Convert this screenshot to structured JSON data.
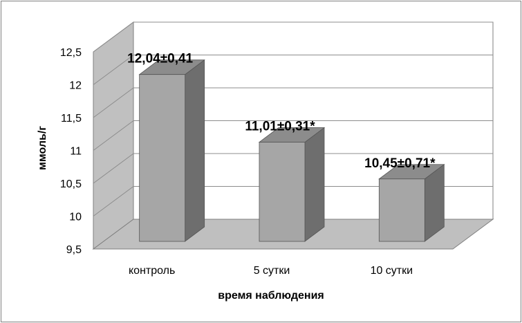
{
  "chart_data": {
    "type": "bar",
    "categories": [
      "контроль",
      "5 сутки",
      "10 сутки"
    ],
    "values": [
      12.04,
      11.01,
      10.45
    ],
    "data_labels": [
      "12,04±0,41",
      "11,01±0,31*",
      "10,45±0,71*"
    ],
    "xlabel": "время наблюдения",
    "ylabel": "ммоль/г",
    "ylim": [
      9.5,
      12.5
    ],
    "yticks": [
      "9,5",
      "10",
      "10,5",
      "11",
      "11,5",
      "12",
      "12,5"
    ],
    "grid": true,
    "style": "3d",
    "colors": {
      "bar_front": "#a6a6a6",
      "bar_side": "#6e6e6e",
      "bar_top": "#8c8c8c",
      "floor": "#bfbfbf",
      "side_wall": "#c0c0c0",
      "back_wall": "#ffffff",
      "grid": "#8c8c8c"
    }
  }
}
